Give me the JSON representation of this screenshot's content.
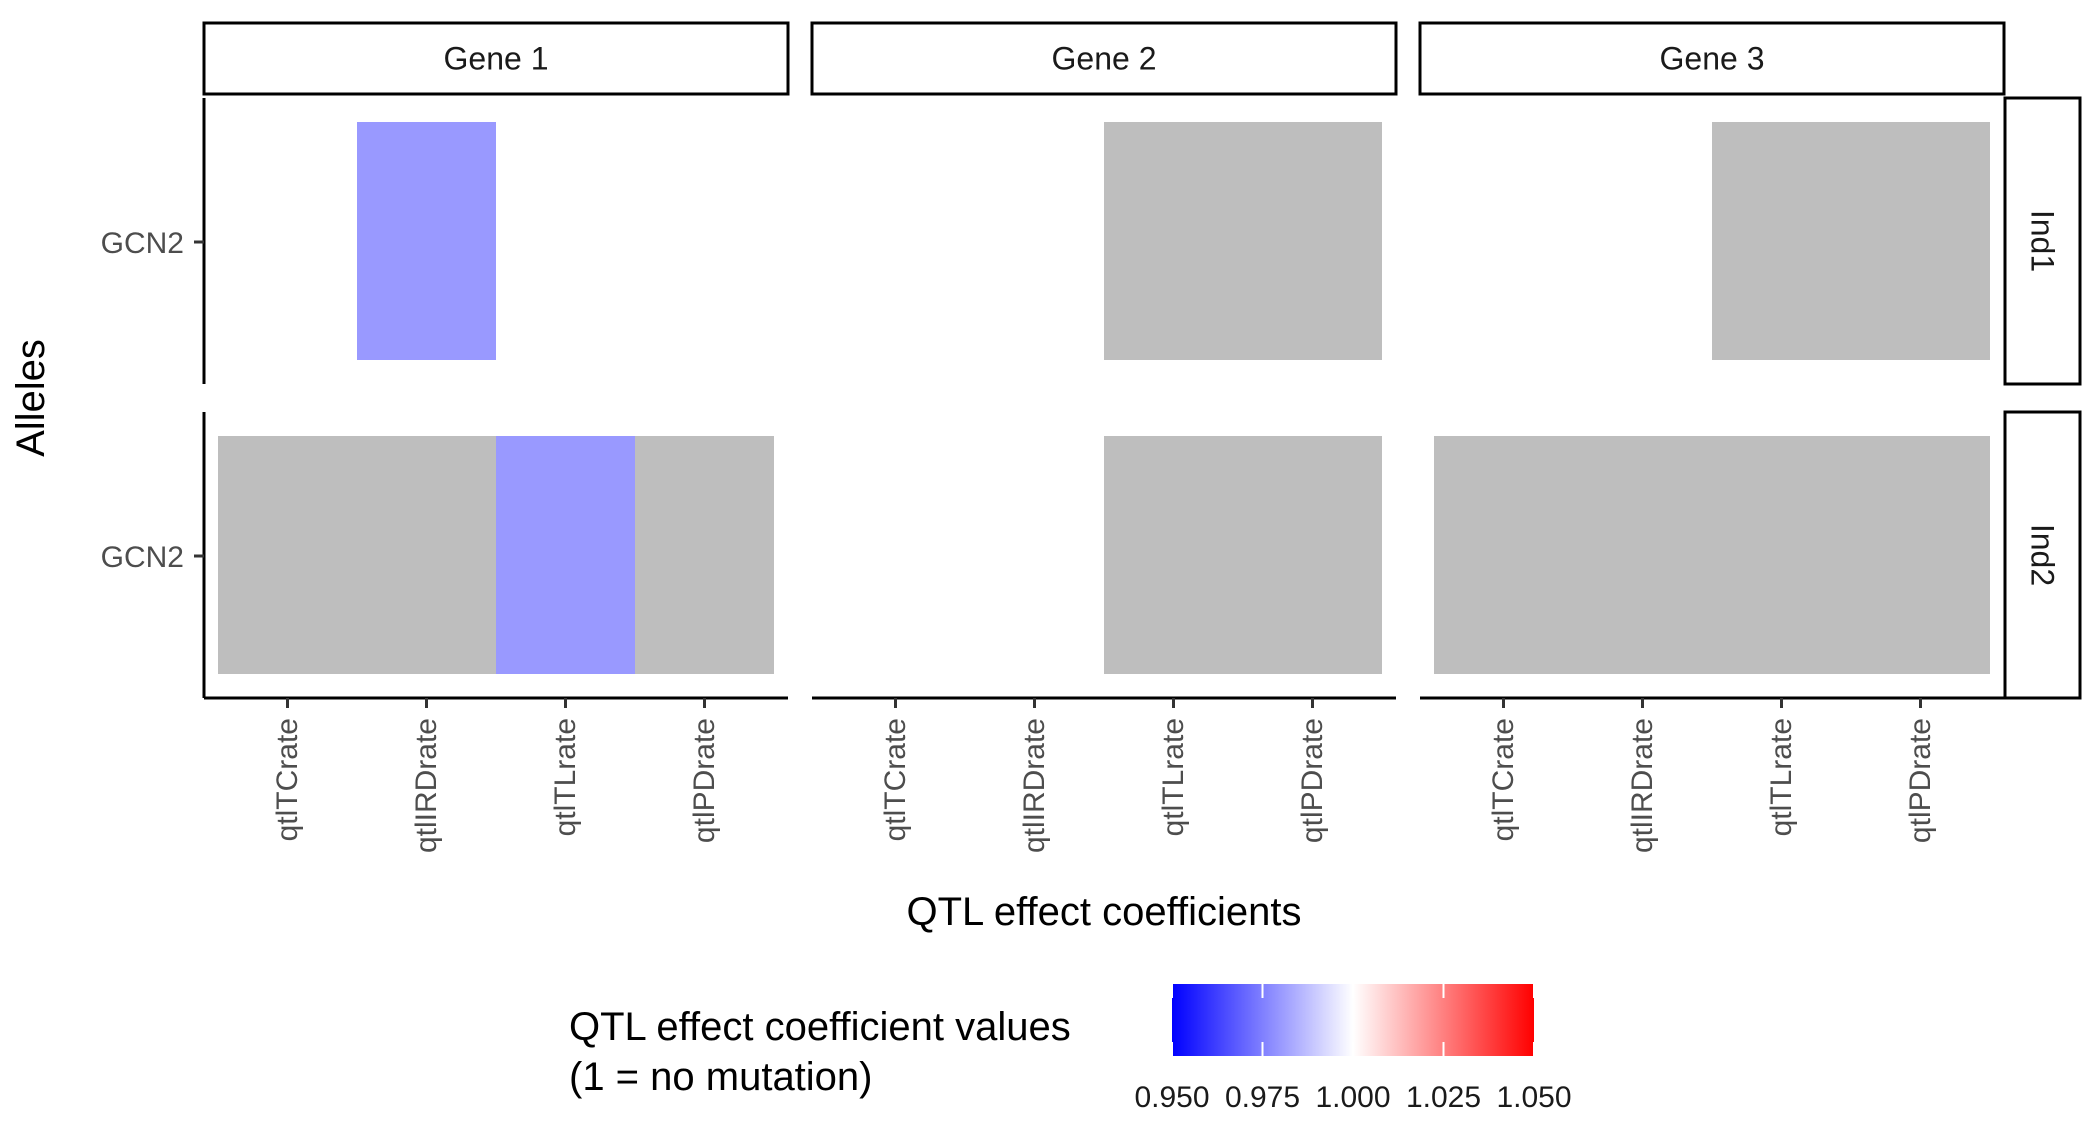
{
  "chart_data": {
    "type": "heatmap",
    "xlabel": "QTL effect coefficients",
    "ylabel": "Alleles",
    "facet_columns": [
      "Gene 1",
      "Gene 2",
      "Gene 3"
    ],
    "facet_rows": [
      "Ind1",
      "Ind2"
    ],
    "x_categories": [
      "qtlTCrate",
      "qtlIRDrate",
      "qtlTLrate",
      "qtlPDrate"
    ],
    "y_categories": [
      "GCN2"
    ],
    "cells": [
      {
        "gene": "Gene 1",
        "ind": "Ind1",
        "allele": "GCN2",
        "x": "qtlIRDrate",
        "value": 0.98
      },
      {
        "gene": "Gene 1",
        "ind": "Ind2",
        "allele": "GCN2",
        "x": "qtlTCrate",
        "value": null
      },
      {
        "gene": "Gene 1",
        "ind": "Ind2",
        "allele": "GCN2",
        "x": "qtlIRDrate",
        "value": null
      },
      {
        "gene": "Gene 1",
        "ind": "Ind2",
        "allele": "GCN2",
        "x": "qtlTLrate",
        "value": 0.98
      },
      {
        "gene": "Gene 1",
        "ind": "Ind2",
        "allele": "GCN2",
        "x": "qtlPDrate",
        "value": null
      },
      {
        "gene": "Gene 2",
        "ind": "Ind1",
        "allele": "GCN2",
        "x": "qtlTLrate",
        "value": null
      },
      {
        "gene": "Gene 2",
        "ind": "Ind1",
        "allele": "GCN2",
        "x": "qtlPDrate",
        "value": null
      },
      {
        "gene": "Gene 2",
        "ind": "Ind2",
        "allele": "GCN2",
        "x": "qtlTLrate",
        "value": null
      },
      {
        "gene": "Gene 2",
        "ind": "Ind2",
        "allele": "GCN2",
        "x": "qtlPDrate",
        "value": null
      },
      {
        "gene": "Gene 3",
        "ind": "Ind1",
        "allele": "GCN2",
        "x": "qtlTLrate",
        "value": null
      },
      {
        "gene": "Gene 3",
        "ind": "Ind1",
        "allele": "GCN2",
        "x": "qtlPDrate",
        "value": null
      },
      {
        "gene": "Gene 3",
        "ind": "Ind2",
        "allele": "GCN2",
        "x": "qtlTCrate",
        "value": null
      },
      {
        "gene": "Gene 3",
        "ind": "Ind2",
        "allele": "GCN2",
        "x": "qtlIRDrate",
        "value": null
      },
      {
        "gene": "Gene 3",
        "ind": "Ind2",
        "allele": "GCN2",
        "x": "qtlTLrate",
        "value": null
      },
      {
        "gene": "Gene 3",
        "ind": "Ind2",
        "allele": "GCN2",
        "x": "qtlPDrate",
        "value": null
      }
    ],
    "legend": {
      "title_lines": [
        "QTL effect coefficient values",
        "(1 = no mutation)"
      ],
      "ticks": [
        "0.950",
        "0.975",
        "1.000",
        "1.025",
        "1.050"
      ],
      "tick_values": [
        0.95,
        0.975,
        1.0,
        1.025,
        1.05
      ],
      "range": [
        0.95,
        1.05
      ],
      "low_color": "#0000ff",
      "mid_color": "#ffffff",
      "high_color": "#ff0000",
      "position": "bottom"
    },
    "na_color": "#bebebe",
    "grid": false
  }
}
